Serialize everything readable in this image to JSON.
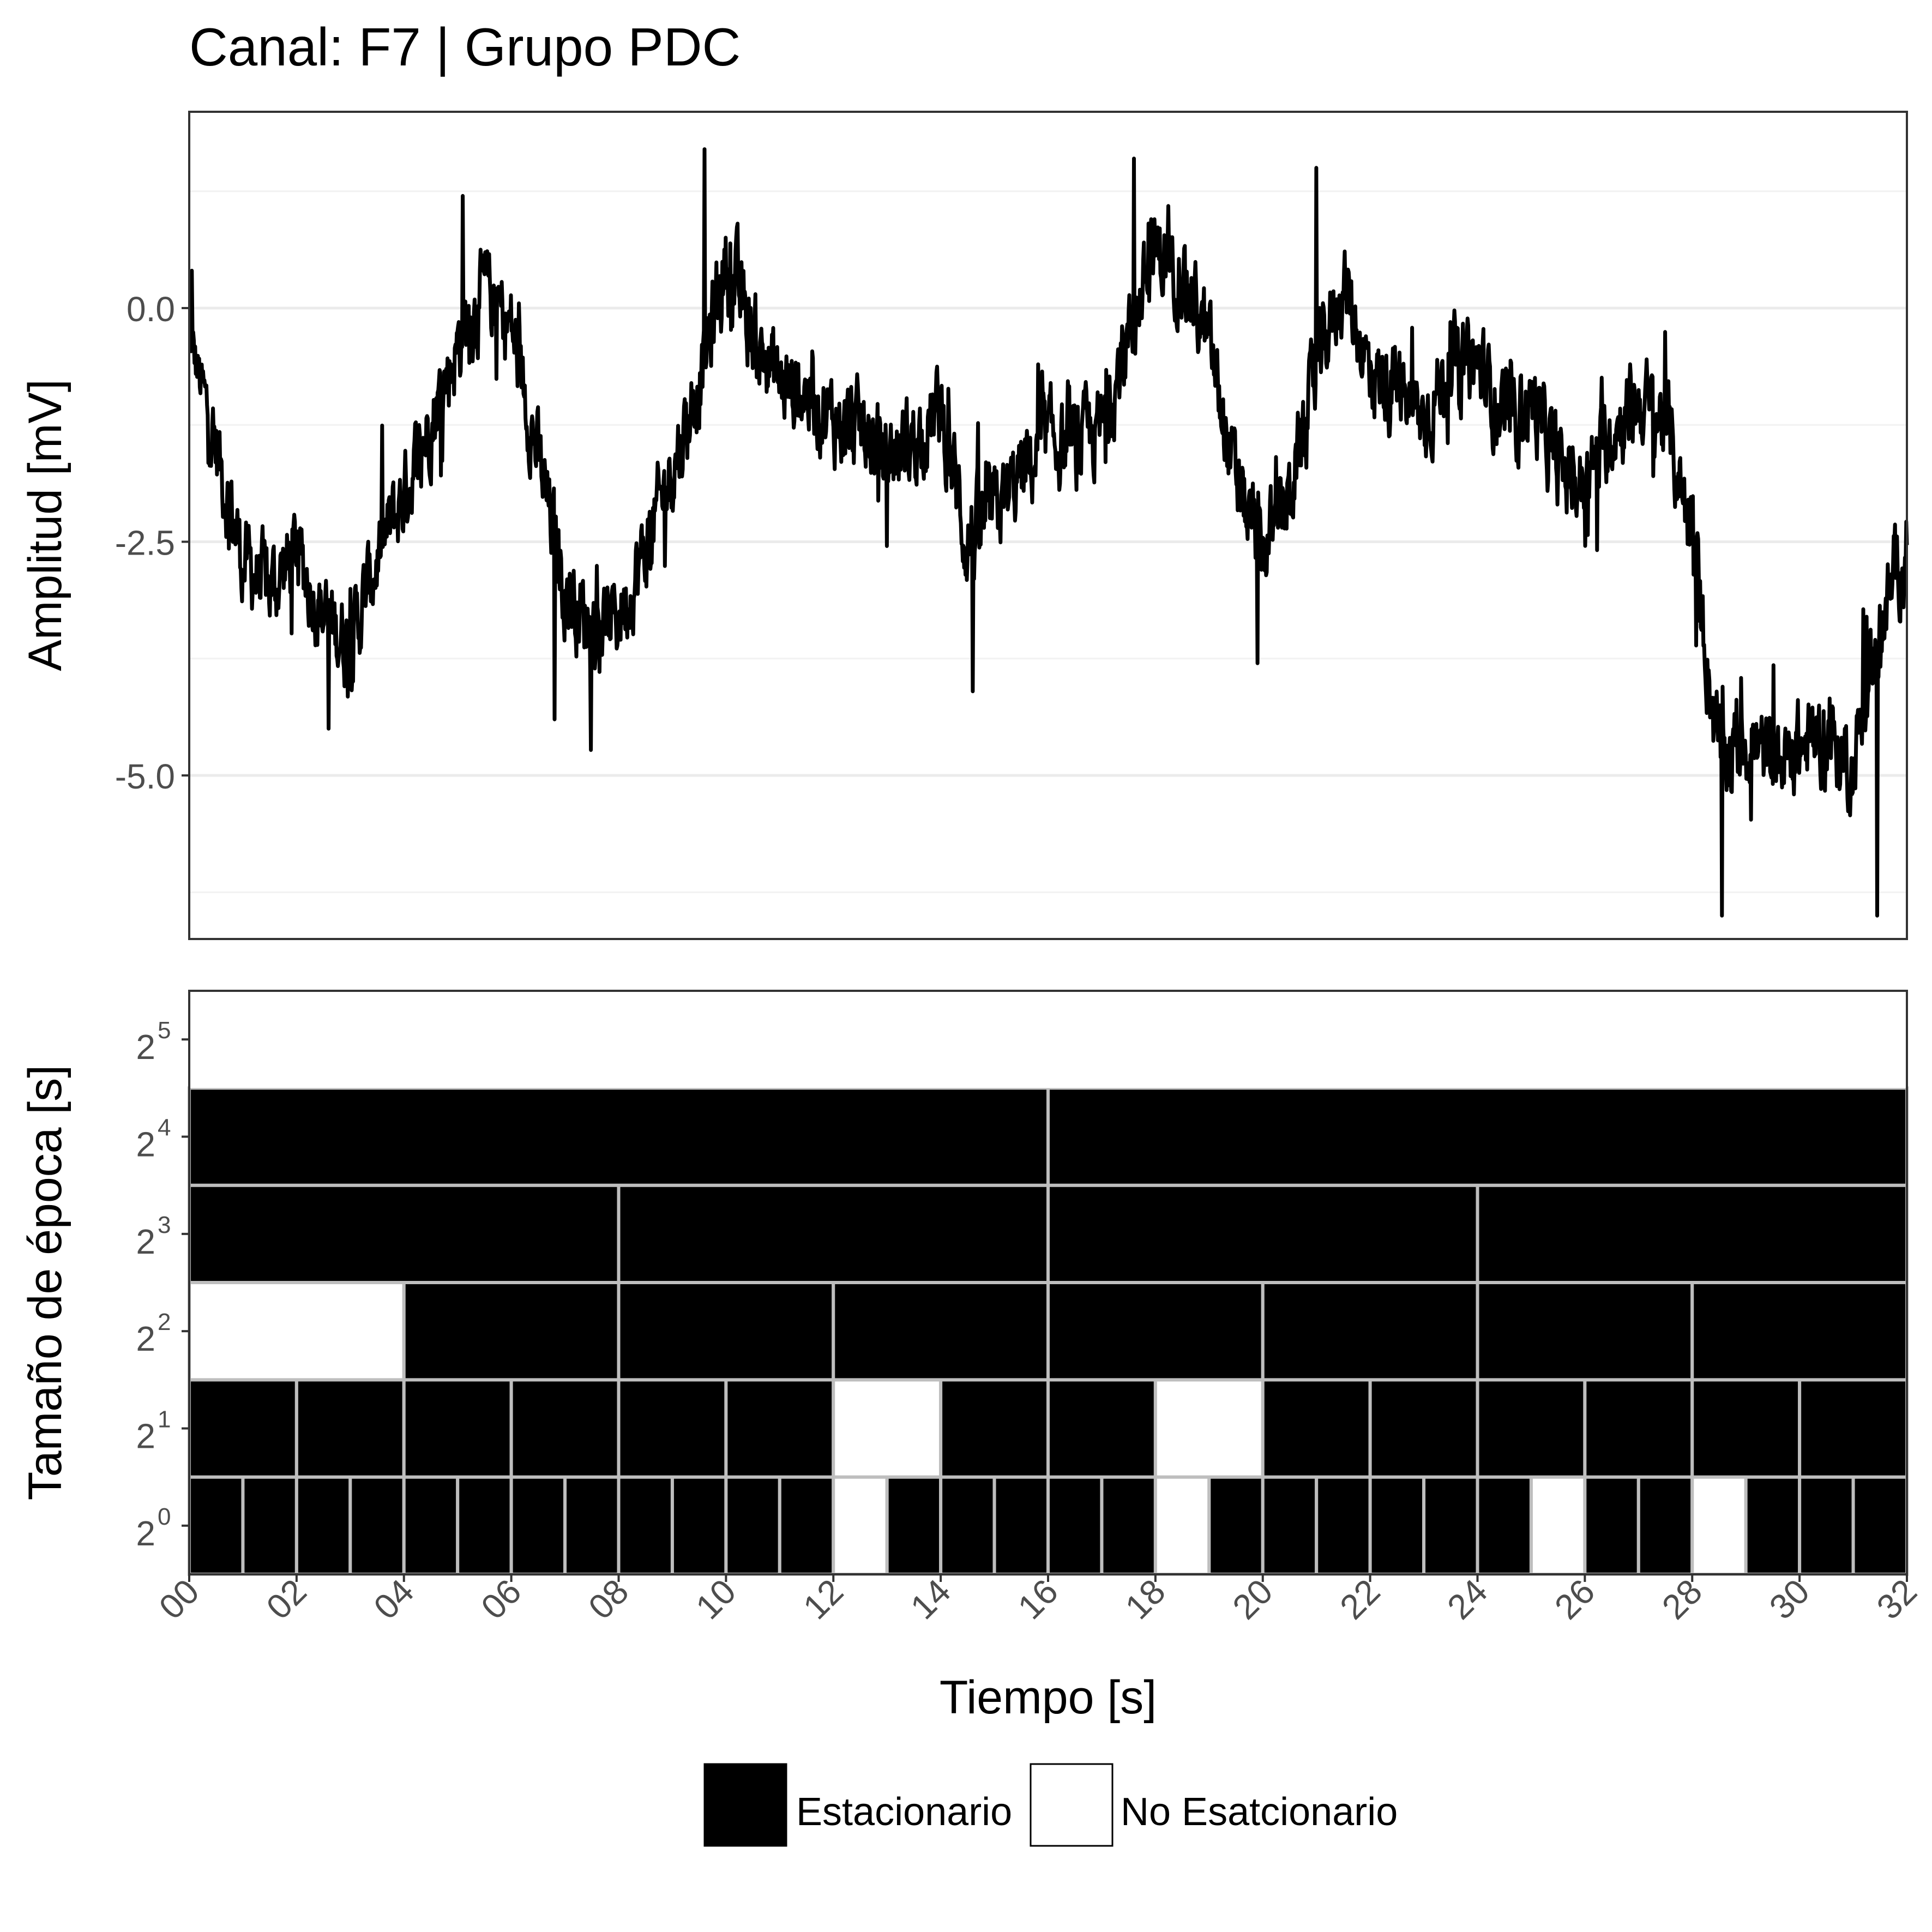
{
  "title": "Canal: F7 | Grupo PDC",
  "chart_data": [
    {
      "type": "line",
      "ylabel": "Amplitud [mV]",
      "xlim": [
        0,
        32
      ],
      "ylim": [
        -6.75,
        2.1
      ],
      "yticks": [
        {
          "value": 0.0,
          "label": "0.0"
        },
        {
          "value": -2.5,
          "label": "-2.5"
        },
        {
          "value": -5.0,
          "label": "-5.0"
        }
      ],
      "ygrid_minor": [
        1.25,
        -1.25,
        -3.75,
        -6.25
      ],
      "grid": true,
      "line_color": "#000000",
      "envelope": {
        "t": [
          0.0,
          0.5,
          1.0,
          1.5,
          2.0,
          2.5,
          3.0,
          3.5,
          4.0,
          4.5,
          5.0,
          5.5,
          6.0,
          6.5,
          7.0,
          7.5,
          8.0,
          8.5,
          9.0,
          9.5,
          10.0,
          10.5,
          11.0,
          11.5,
          12.0,
          12.5,
          13.0,
          13.5,
          14.0,
          14.5,
          15.0,
          15.5,
          16.0,
          16.5,
          17.0,
          17.5,
          18.0,
          18.5,
          19.0,
          19.5,
          20.0,
          20.5,
          21.0,
          21.5,
          22.0,
          22.5,
          23.0,
          23.5,
          24.0,
          24.5,
          25.0,
          25.5,
          26.0,
          26.5,
          27.0,
          27.5,
          28.0,
          28.5,
          29.0,
          29.5,
          30.0,
          30.5,
          31.0,
          31.5,
          32.0
        ],
        "center": [
          -0.3,
          -1.5,
          -2.7,
          -3.0,
          -2.6,
          -3.3,
          -3.6,
          -2.7,
          -2.0,
          -1.2,
          -0.4,
          0.2,
          -0.2,
          -1.6,
          -3.0,
          -3.4,
          -3.3,
          -2.6,
          -1.7,
          -0.8,
          0.5,
          -0.3,
          -0.8,
          -0.9,
          -1.2,
          -1.3,
          -1.6,
          -1.4,
          -1.1,
          -2.5,
          -2.2,
          -1.8,
          -1.4,
          -1.5,
          -1.3,
          -0.3,
          0.6,
          0.4,
          -0.4,
          -1.9,
          -2.6,
          -2.0,
          -0.7,
          0.3,
          -0.7,
          -0.9,
          -1.2,
          -0.6,
          -0.6,
          -1.2,
          -1.0,
          -1.7,
          -1.9,
          -1.3,
          -1.0,
          -1.2,
          -2.4,
          -4.8,
          -4.6,
          -4.9,
          -4.7,
          -4.6,
          -4.9,
          -3.4,
          -2.5
        ],
        "noise": [
          0.3,
          0.5,
          0.5,
          0.5,
          0.5,
          0.5,
          0.5,
          0.5,
          0.5,
          0.5,
          0.5,
          0.5,
          0.5,
          0.5,
          0.5,
          0.5,
          0.5,
          0.5,
          0.5,
          0.5,
          0.6,
          0.5,
          0.5,
          0.5,
          0.5,
          0.5,
          0.5,
          0.5,
          0.5,
          0.6,
          0.5,
          0.5,
          0.5,
          0.5,
          0.5,
          0.5,
          0.5,
          0.5,
          0.5,
          0.5,
          0.5,
          0.5,
          0.5,
          0.5,
          0.5,
          0.5,
          0.5,
          0.5,
          0.5,
          0.5,
          0.5,
          0.5,
          0.5,
          0.5,
          0.5,
          0.5,
          0.5,
          0.6,
          0.5,
          0.5,
          0.5,
          0.5,
          0.5,
          0.5,
          0.5
        ]
      },
      "peaks": [
        {
          "t": 0.05,
          "v": 0.4
        },
        {
          "t": 2.6,
          "v": -4.5
        },
        {
          "t": 5.1,
          "v": 1.2
        },
        {
          "t": 6.8,
          "v": -4.4
        },
        {
          "t": 9.6,
          "v": 1.7
        },
        {
          "t": 14.6,
          "v": -4.1
        },
        {
          "t": 17.6,
          "v": 1.6
        },
        {
          "t": 19.9,
          "v": -3.8
        },
        {
          "t": 21.0,
          "v": 1.5
        },
        {
          "t": 28.55,
          "v": -6.5
        },
        {
          "t": 31.45,
          "v": -6.5
        }
      ]
    },
    {
      "type": "heatmap",
      "xlabel": "Tiempo [s]",
      "ylabel": "Tamaño de época [s]",
      "xlim": [
        0,
        32
      ],
      "xticks": [
        "00",
        "02",
        "04",
        "06",
        "08",
        "10",
        "12",
        "14",
        "16",
        "18",
        "20",
        "22",
        "24",
        "26",
        "28",
        "30",
        "32"
      ],
      "ycategories": [
        {
          "base": "2",
          "exp": "0",
          "epoch": 1
        },
        {
          "base": "2",
          "exp": "1",
          "epoch": 2
        },
        {
          "base": "2",
          "exp": "2",
          "epoch": 4
        },
        {
          "base": "2",
          "exp": "3",
          "epoch": 8
        },
        {
          "base": "2",
          "exp": "4",
          "epoch": 16
        },
        {
          "base": "2",
          "exp": "5",
          "epoch": 32
        }
      ],
      "legend": {
        "placement": "bottom",
        "entries": [
          {
            "key": "E",
            "label": "Estacionario",
            "color": "#000000"
          },
          {
            "key": "N",
            "label": "No Esatcionario",
            "color": "#ffffff"
          }
        ]
      },
      "rows": [
        {
          "epoch": 1,
          "states": [
            "E",
            "E",
            "E",
            "E",
            "E",
            "E",
            "E",
            "E",
            "E",
            "E",
            "E",
            "E",
            "N",
            "E",
            "E",
            "E",
            "E",
            "E",
            "N",
            "E",
            "E",
            "E",
            "E",
            "E",
            "E",
            "N",
            "E",
            "E",
            "N",
            "E",
            "E",
            "E"
          ]
        },
        {
          "epoch": 2,
          "states": [
            "E",
            "E",
            "E",
            "E",
            "E",
            "E",
            "N",
            "E",
            "E",
            "N",
            "E",
            "E",
            "E",
            "E",
            "E",
            "E"
          ]
        },
        {
          "epoch": 4,
          "states": [
            "N",
            "E",
            "E",
            "E",
            "E",
            "E",
            "E",
            "E"
          ]
        },
        {
          "epoch": 8,
          "states": [
            "E",
            "E",
            "E",
            "E"
          ]
        },
        {
          "epoch": 16,
          "states": [
            "E",
            "E"
          ]
        },
        {
          "epoch": 32,
          "states": [
            "N"
          ]
        }
      ]
    }
  ]
}
